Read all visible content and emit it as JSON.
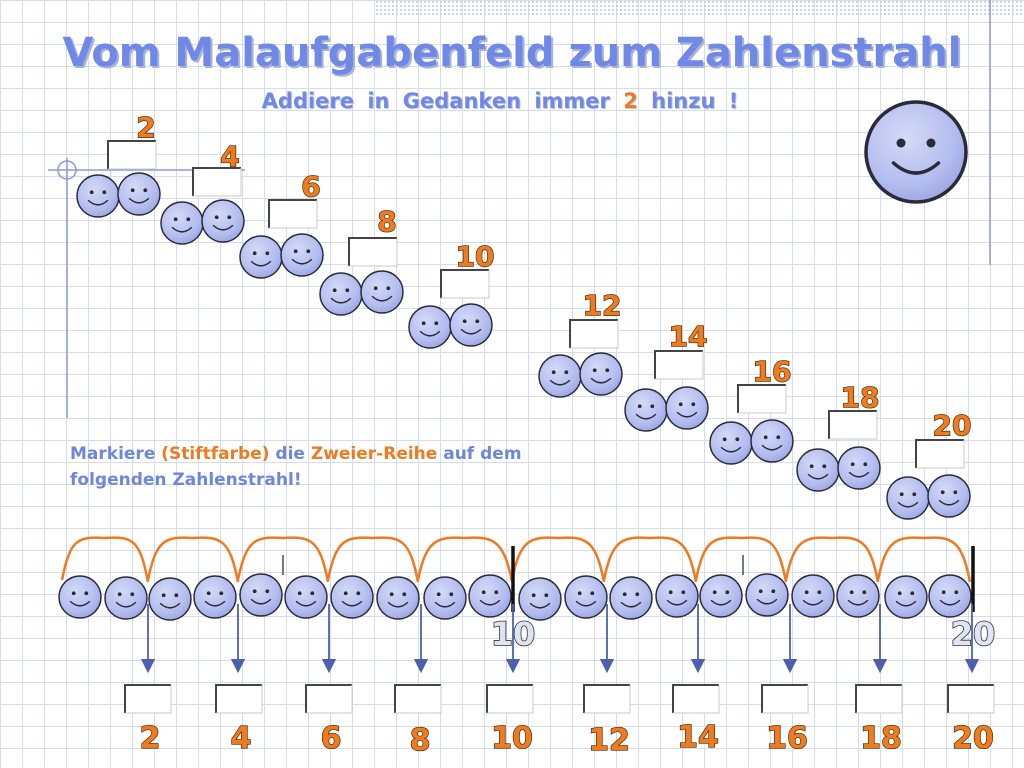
{
  "title": "Vom Malaufgabenfeld zum Zahlenstrahl",
  "subtitle": {
    "before": "Addiere  in  Gedanken  immer",
    "number": "2",
    "after": "hinzu !"
  },
  "instruction": {
    "part1": "Markiere",
    "part2": "(Stiftfarbe)",
    "part3": "die",
    "part4": "Zweier-Reihe",
    "part5": "auf dem",
    "line2": "folgenden Zahlenstrahl!"
  },
  "staircase_labels": [
    "2",
    "4",
    "6",
    "8",
    "10",
    "12",
    "14",
    "16",
    "18",
    "20"
  ],
  "numberline": {
    "marker_labels": [
      "10",
      "20"
    ],
    "answer_labels": [
      "2",
      "4",
      "6",
      "8",
      "10",
      "12",
      "14",
      "16",
      "18",
      "20"
    ],
    "smiley_count": 20
  },
  "colors": {
    "title": "#7088e6",
    "accent": "#f07a20",
    "smiley_fill": "#b7bff0",
    "grid": "#d6dbee"
  }
}
